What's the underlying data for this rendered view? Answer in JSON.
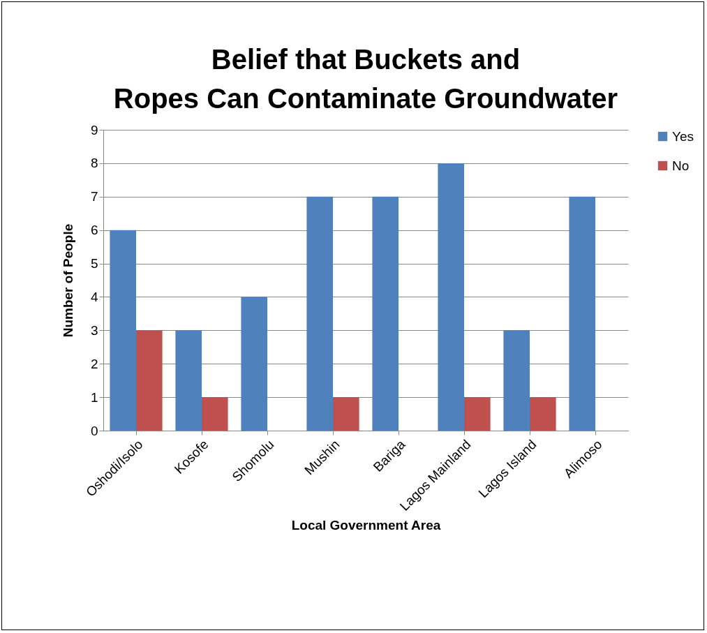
{
  "chart_data": {
    "type": "bar",
    "title": "Belief that Buckets and Ropes Can Contaminate Groundwater",
    "xlabel": "Local Government Area",
    "ylabel": "Number of People",
    "categories": [
      "Oshodi/Isolo",
      "Kosofe",
      "Shomolu",
      "Mushin",
      "Bariga",
      "Lagos Mainland",
      "Lagos Island",
      "Alimoso"
    ],
    "series": [
      {
        "name": "Yes",
        "color": "#4f81bd",
        "values": [
          6,
          3,
          4,
          7,
          7,
          8,
          3,
          7
        ]
      },
      {
        "name": "No",
        "color": "#c0504d",
        "values": [
          3,
          1,
          0,
          1,
          0,
          1,
          1,
          0
        ]
      }
    ],
    "ylim": [
      0,
      9
    ],
    "yticks": [
      0,
      1,
      2,
      3,
      4,
      5,
      6,
      7,
      8,
      9
    ],
    "grid": "y",
    "legend": "right"
  }
}
